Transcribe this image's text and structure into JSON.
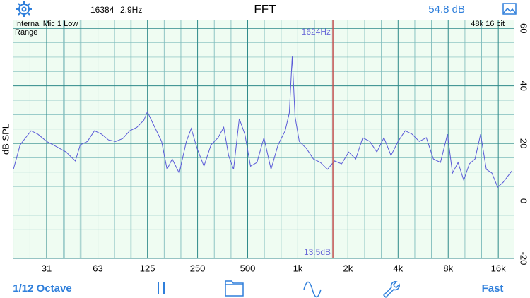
{
  "header": {
    "fft_size": "16384",
    "resolution": "2.9Hz",
    "title": "FFT",
    "level": "54.8 dB"
  },
  "chart_data": {
    "type": "line",
    "input": "Internal Mic 1 Low",
    "mode": "Range",
    "format": "48k 16 bit",
    "y_label": "dB SPL",
    "log_x": true,
    "grid": true,
    "minor_grid": true,
    "xlim": [
      19.4,
      20000
    ],
    "ylim": [
      -20,
      63
    ],
    "xticks": [
      31,
      63,
      125,
      250,
      500,
      {
        "value": 1000,
        "label": "1k"
      },
      {
        "value": 2000,
        "label": "2k"
      },
      {
        "value": 4000,
        "label": "4k"
      },
      {
        "value": 8000,
        "label": "8k"
      },
      {
        "value": 16000,
        "label": "16k"
      }
    ],
    "yticks": [
      60,
      40,
      20,
      0,
      -20
    ],
    "x": [
      19.6,
      21.5,
      25.0,
      27.5,
      31,
      35.2,
      40.6,
      46.1,
      49.4,
      54.5,
      60.1,
      66.3,
      73.0,
      80.5,
      88.8,
      98.0,
      108,
      119,
      125,
      135,
      152,
      164,
      176,
      194,
      214,
      229,
      248,
      273,
      301,
      332,
      359,
      384,
      411,
      445,
      481,
      520,
      568,
      626,
      690,
      761,
      839,
      889,
      925,
      962,
      1020,
      1124,
      1240,
      1367,
      1507,
      1661,
      1832,
      2020,
      2227,
      2455,
      2707,
      2984,
      3291,
      3628,
      4000,
      4410,
      4863,
      5362,
      5911,
      6517,
      7186,
      7923,
      8485,
      9170,
      9920,
      10720,
      11590,
      12530,
      13560,
      14650,
      15850,
      17130,
      19270
    ],
    "series": [
      {
        "color": "#5a5ad8",
        "values": [
          11.0,
          19.5,
          24.4,
          23.2,
          20.7,
          19,
          17,
          13.9,
          19.5,
          20.7,
          24.4,
          23.2,
          21.2,
          20.7,
          21.7,
          24.4,
          25.6,
          28.1,
          31,
          26.9,
          20.7,
          11,
          14.6,
          9.7,
          20.7,
          25.2,
          18.3,
          12.1,
          19.5,
          22,
          25.6,
          15.8,
          11,
          28.6,
          23.2,
          12.1,
          13.4,
          22,
          11,
          19.5,
          24.4,
          30.6,
          50.2,
          29.3,
          20.7,
          18.3,
          14.6,
          13.4,
          11,
          13.9,
          12.9,
          17,
          14.6,
          22,
          20.7,
          17,
          22,
          15.8,
          20.7,
          24.4,
          23.2,
          20.7,
          22,
          14.6,
          13.4,
          23.2,
          9.7,
          13.4,
          7.2,
          12.9,
          14.6,
          23.2,
          11,
          9.7,
          4.8,
          6.5,
          10.4
        ]
      }
    ],
    "cursor": {
      "x": 1624,
      "x_label": "1624Hz",
      "y": 13.5,
      "y_label": "13.5dB",
      "color": "#c05050"
    }
  },
  "toolbar": {
    "resolution": "1/12 Octave",
    "speed": "Fast"
  }
}
